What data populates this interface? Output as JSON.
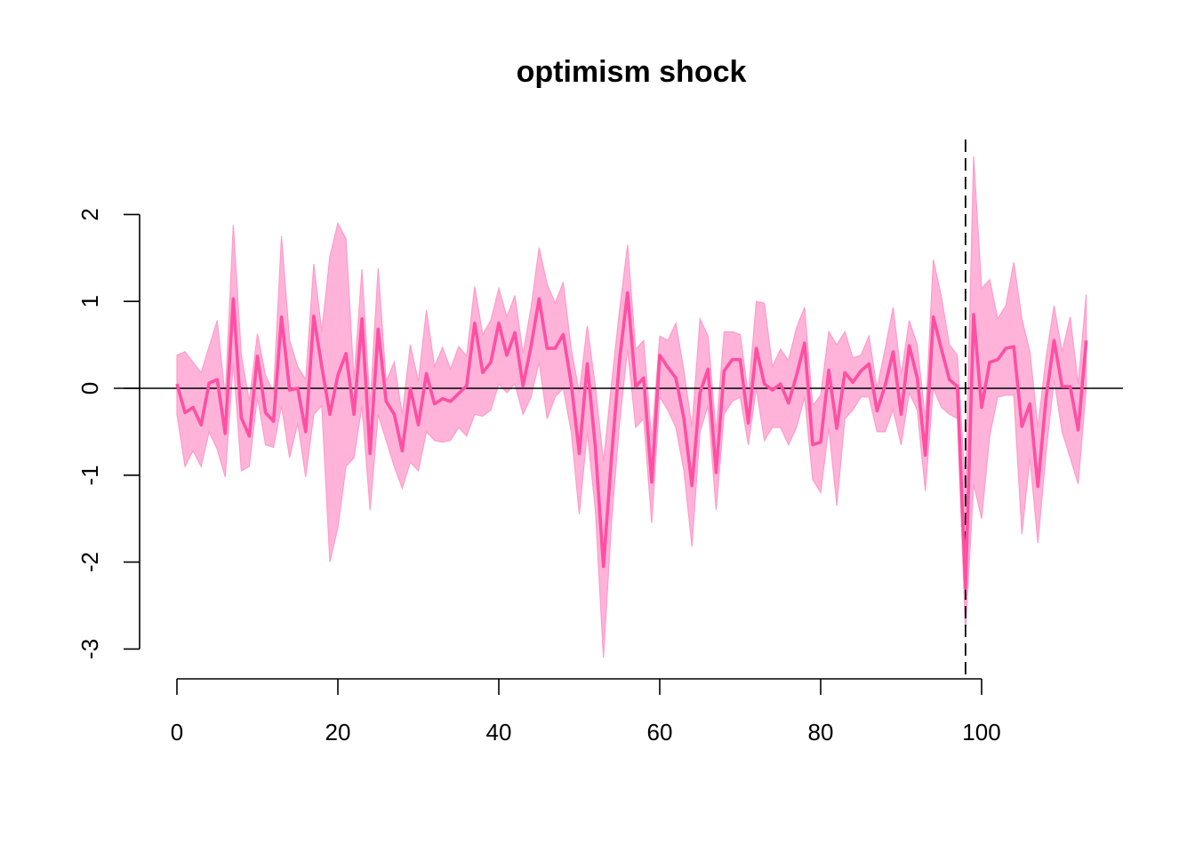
{
  "chart_data": {
    "type": "line",
    "title": "optimism shock",
    "xlabel": "",
    "ylabel": "",
    "xlim": [
      0,
      113
    ],
    "ylim": [
      -3,
      2.7
    ],
    "x_ticks": [
      0,
      20,
      40,
      60,
      80,
      100
    ],
    "x_tick_labels": [
      "0",
      "20",
      "40",
      "60",
      "80",
      "100"
    ],
    "y_ticks": [
      -3,
      -2,
      -1,
      0,
      1,
      2
    ],
    "y_tick_labels": [
      "-3",
      "-2",
      "-1",
      "0",
      "1",
      "2"
    ],
    "reference_hline": 0,
    "reference_vline": 98,
    "colors": {
      "line": "#ff4fa3",
      "band": "#ffb3d9",
      "band_edge": "#ff9cc9",
      "axis": "#000000"
    },
    "series": [
      {
        "x": [
          0,
          1,
          2,
          3,
          4,
          5,
          6,
          7,
          8,
          9,
          10,
          11,
          12,
          13,
          14,
          15,
          16,
          17,
          18,
          19,
          20,
          21,
          22,
          23,
          24,
          25,
          26,
          27,
          28,
          29,
          30,
          31,
          32,
          33,
          34,
          35,
          36,
          37,
          38,
          39,
          40,
          41,
          42,
          43,
          44,
          45,
          46,
          47,
          48,
          49,
          50,
          51,
          52,
          53,
          54,
          55,
          56,
          57,
          58,
          59,
          60,
          61,
          62,
          63,
          64,
          65,
          66,
          67,
          68,
          69,
          70,
          71,
          72,
          73,
          74,
          75,
          76,
          77,
          78,
          79,
          80,
          81,
          82,
          83,
          84,
          85,
          86,
          87,
          88,
          89,
          90,
          91,
          92,
          93,
          94,
          95,
          96,
          97,
          98,
          99,
          100,
          101,
          102,
          103,
          104,
          105,
          106,
          107,
          108,
          109,
          110,
          111,
          112,
          113
        ],
        "y": [
          0.05,
          -0.28,
          -0.22,
          -0.42,
          0.06,
          0.1,
          -0.52,
          1.03,
          -0.34,
          -0.55,
          0.37,
          -0.28,
          -0.38,
          0.82,
          -0.02,
          0.0,
          -0.5,
          0.83,
          0.25,
          -0.3,
          0.15,
          0.4,
          -0.3,
          0.8,
          -0.75,
          0.68,
          -0.15,
          -0.3,
          -0.72,
          0.0,
          -0.42,
          0.17,
          -0.18,
          -0.12,
          -0.15,
          -0.06,
          0.03,
          0.75,
          0.18,
          0.3,
          0.75,
          0.38,
          0.64,
          0.03,
          0.48,
          1.03,
          0.46,
          0.46,
          0.62,
          0.05,
          -0.75,
          0.28,
          -0.68,
          -2.05,
          -0.8,
          0.33,
          1.1,
          0.02,
          0.12,
          -1.08,
          0.38,
          0.24,
          0.12,
          -0.35,
          -1.12,
          -0.05,
          0.22,
          -0.97,
          0.2,
          0.33,
          0.33,
          -0.4,
          0.46,
          0.05,
          -0.02,
          0.05,
          -0.17,
          0.15,
          0.52,
          -0.65,
          -0.62,
          0.21,
          -0.46,
          0.18,
          0.07,
          0.2,
          0.28,
          -0.26,
          0.03,
          0.42,
          -0.3,
          0.49,
          0.12,
          -0.77,
          0.82,
          0.45,
          0.1,
          0.02,
          -2.3,
          0.85,
          -0.22,
          0.3,
          0.33,
          0.46,
          0.48,
          -0.44,
          -0.18,
          -1.13,
          -0.12,
          0.55,
          0.02,
          0.02,
          -0.48,
          0.55
        ],
        "lower": [
          -0.3,
          -0.9,
          -0.72,
          -0.9,
          -0.5,
          -0.7,
          -1.02,
          0.3,
          -0.95,
          -0.9,
          -0.1,
          -0.65,
          -0.68,
          -0.2,
          -0.8,
          -0.4,
          -1.02,
          -0.3,
          -0.2,
          -2.0,
          -1.6,
          -0.9,
          -0.8,
          -0.2,
          -1.4,
          -0.3,
          -0.6,
          -0.9,
          -1.15,
          -0.85,
          -0.95,
          -0.5,
          -0.6,
          -0.62,
          -0.6,
          -0.45,
          -0.55,
          -0.3,
          -0.32,
          -0.25,
          0.05,
          -0.05,
          0.05,
          -0.3,
          -0.1,
          0.3,
          -0.35,
          -0.1,
          0.0,
          -0.5,
          -1.45,
          -0.5,
          -1.4,
          -3.1,
          -1.55,
          -0.4,
          0.45,
          -0.45,
          -0.35,
          -1.55,
          -0.1,
          -0.25,
          -0.45,
          -0.95,
          -1.82,
          -0.5,
          -0.2,
          -1.4,
          -0.3,
          -0.15,
          -0.1,
          -0.65,
          0.0,
          -0.6,
          -0.45,
          -0.45,
          -0.65,
          -0.45,
          -0.1,
          -1.05,
          -1.2,
          -0.45,
          -1.35,
          -0.35,
          -0.25,
          -0.1,
          -0.1,
          -0.5,
          -0.5,
          -0.25,
          -0.65,
          -0.05,
          -0.25,
          -1.18,
          0.0,
          -0.22,
          -0.3,
          -0.35,
          -2.8,
          -1.1,
          -1.5,
          -0.55,
          -0.1,
          -0.08,
          -0.08,
          -1.68,
          -0.8,
          -1.78,
          -0.75,
          0.1,
          -0.5,
          -0.8,
          -1.1,
          0.0
        ],
        "upper": [
          0.38,
          0.42,
          0.3,
          0.18,
          0.48,
          0.78,
          -0.1,
          1.88,
          0.38,
          -0.15,
          0.63,
          0.15,
          -0.05,
          1.75,
          0.55,
          0.25,
          0.1,
          1.43,
          0.65,
          1.52,
          1.9,
          1.72,
          0.1,
          1.37,
          -0.2,
          1.38,
          0.08,
          0.3,
          -0.3,
          0.5,
          0.08,
          0.9,
          0.25,
          0.47,
          0.22,
          0.48,
          0.37,
          1.17,
          0.62,
          0.78,
          1.15,
          0.82,
          1.07,
          0.4,
          0.92,
          1.62,
          1.2,
          0.98,
          1.22,
          0.45,
          -0.05,
          0.72,
          0.02,
          -0.85,
          0.05,
          0.9,
          1.65,
          0.45,
          0.55,
          -0.6,
          0.6,
          0.55,
          0.75,
          0.2,
          -0.45,
          0.8,
          0.6,
          -0.5,
          0.65,
          0.65,
          0.62,
          -0.08,
          1.0,
          0.98,
          0.25,
          0.45,
          0.32,
          0.7,
          0.93,
          -0.2,
          -0.08,
          0.65,
          0.5,
          0.65,
          0.35,
          0.38,
          0.6,
          0.0,
          0.45,
          0.93,
          0.15,
          0.78,
          0.5,
          -0.35,
          1.48,
          1.05,
          0.5,
          0.38,
          -1.2,
          2.67,
          1.15,
          1.25,
          0.8,
          0.95,
          1.45,
          0.8,
          0.42,
          -0.45,
          0.35,
          0.95,
          0.42,
          0.82,
          0.05,
          1.08
        ]
      }
    ]
  }
}
